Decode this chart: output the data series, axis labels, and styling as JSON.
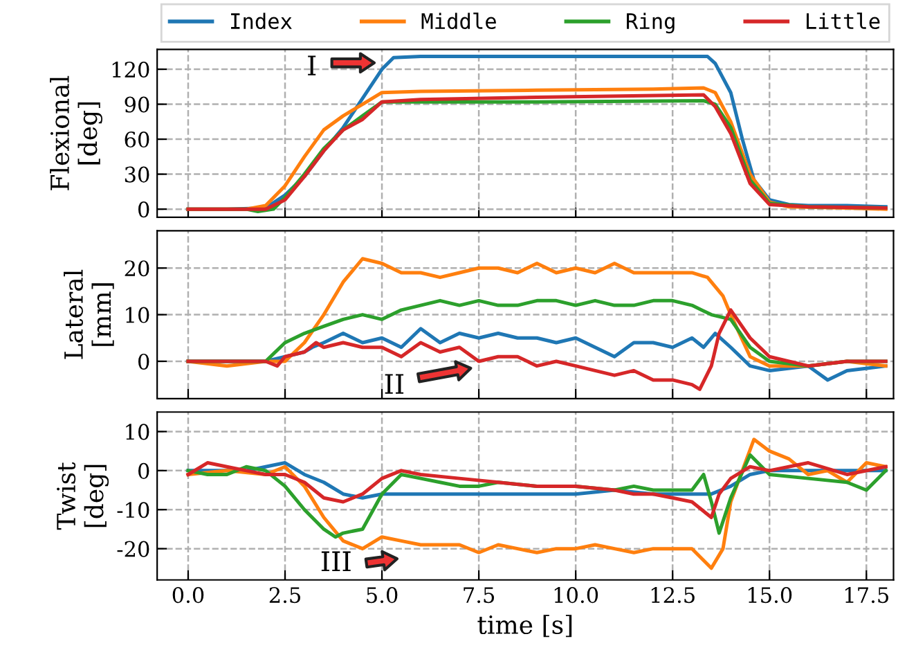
{
  "chart_data": [
    {
      "type": "line",
      "ylabel": "Flexional\n[deg]",
      "xlim": [
        -0.8,
        18.2
      ],
      "ylim": [
        -7,
        137
      ],
      "xticks": [
        0.0,
        2.5,
        5.0,
        7.5,
        10.0,
        12.5,
        15.0,
        17.5
      ],
      "yticks": [
        0,
        30,
        60,
        90,
        120
      ],
      "tick_labels": "y",
      "grid": true,
      "legend": "top",
      "annotations": [
        "I"
      ],
      "series": [
        {
          "name": "Index",
          "color": "#1f77b4",
          "x": [
            0,
            1,
            2,
            2.5,
            3,
            3.5,
            4,
            4.5,
            5,
            5.3,
            6,
            8,
            10,
            12,
            13.4,
            13.6,
            14,
            14.3,
            14.6,
            15,
            15.5,
            16,
            17,
            18
          ],
          "values": [
            0,
            0,
            1,
            12,
            28,
            50,
            70,
            95,
            120,
            130,
            131,
            131,
            131,
            131,
            131,
            125,
            100,
            60,
            25,
            8,
            4,
            3,
            3,
            2
          ]
        },
        {
          "name": "Middle",
          "color": "#ff7f0e",
          "x": [
            0,
            1.5,
            2,
            2.5,
            3,
            3.5,
            4,
            4.5,
            5,
            6,
            9,
            12,
            13.3,
            13.6,
            14,
            14.5,
            15,
            15.5,
            17,
            18
          ],
          "values": [
            0,
            0,
            3,
            20,
            45,
            68,
            80,
            90,
            100,
            101,
            102,
            103,
            104,
            100,
            75,
            30,
            6,
            2,
            1,
            0
          ]
        },
        {
          "name": "Ring",
          "color": "#2ca02c",
          "x": [
            0,
            1.5,
            1.8,
            2.2,
            2.5,
            3,
            3.5,
            4,
            4.5,
            5,
            6,
            9,
            13.3,
            13.6,
            14,
            14.5,
            15,
            16,
            18
          ],
          "values": [
            0,
            0,
            -2,
            0,
            10,
            30,
            52,
            68,
            80,
            92,
            92,
            92,
            93,
            90,
            70,
            25,
            5,
            2,
            1
          ]
        },
        {
          "name": "Little",
          "color": "#d62728",
          "x": [
            0,
            2,
            2.5,
            3,
            3.5,
            4,
            4.5,
            5,
            6,
            9,
            13.3,
            13.6,
            14,
            14.5,
            15,
            16,
            18
          ],
          "values": [
            0,
            0,
            8,
            28,
            50,
            68,
            77,
            92,
            94,
            96,
            98,
            88,
            65,
            22,
            4,
            2,
            1
          ]
        }
      ]
    },
    {
      "type": "line",
      "ylabel": "Lateral\n[mm]",
      "xlim": [
        -0.8,
        18.2
      ],
      "ylim": [
        -8,
        28
      ],
      "xticks": [
        0.0,
        2.5,
        5.0,
        7.5,
        10.0,
        12.5,
        15.0,
        17.5
      ],
      "yticks": [
        0,
        10,
        20
      ],
      "tick_labels": "y",
      "grid": true,
      "annotations": [
        "II"
      ],
      "series": [
        {
          "color": "#1f77b4",
          "x": [
            0,
            1,
            2,
            2.5,
            3,
            3.2,
            3.5,
            4,
            4.5,
            5,
            5.5,
            6,
            6.5,
            7,
            7.5,
            8,
            8.5,
            9,
            9.5,
            10,
            10.5,
            11,
            11.5,
            12,
            12.5,
            13,
            13.3,
            13.6,
            14,
            14.5,
            15,
            16,
            16.5,
            17,
            18
          ],
          "values": [
            0,
            0,
            0,
            1,
            2,
            3,
            4,
            6,
            4,
            5,
            3,
            7,
            4,
            6,
            5,
            6,
            5,
            5,
            4,
            5,
            3,
            1,
            4,
            4,
            3,
            5,
            3,
            6,
            3,
            -1,
            -2,
            -1,
            -4,
            -2,
            -1
          ]
        },
        {
          "color": "#ff7f0e",
          "x": [
            0,
            1,
            2,
            2.5,
            3,
            3.5,
            4,
            4.5,
            5,
            5.5,
            6,
            6.5,
            7,
            7.5,
            8,
            8.5,
            9,
            9.5,
            10,
            10.5,
            11,
            11.5,
            12,
            12.5,
            13,
            13.4,
            13.8,
            14,
            14.5,
            15,
            16,
            17,
            18
          ],
          "values": [
            0,
            -1,
            0,
            0,
            4,
            10,
            17,
            22,
            21,
            19,
            19,
            18,
            19,
            20,
            20,
            19,
            21,
            19,
            20,
            19,
            21,
            19,
            19,
            19,
            19,
            18,
            14,
            10,
            1,
            -1,
            -1,
            0,
            -1
          ]
        },
        {
          "color": "#2ca02c",
          "x": [
            0,
            1,
            2,
            2.5,
            3,
            3.5,
            4,
            4.5,
            5,
            5.5,
            6,
            6.5,
            7,
            7.5,
            8,
            8.5,
            9,
            9.5,
            10,
            10.5,
            11,
            11.5,
            12,
            12.5,
            13,
            13.5,
            14,
            14.5,
            15,
            16,
            17,
            18
          ],
          "values": [
            0,
            0,
            0,
            4,
            6,
            7.5,
            9,
            10,
            9,
            11,
            12,
            13,
            12,
            13,
            12,
            12,
            13,
            13,
            12,
            13,
            12,
            12,
            13,
            13,
            12,
            10,
            9,
            3,
            0,
            -1,
            0,
            0
          ]
        },
        {
          "color": "#d62728",
          "x": [
            0,
            1,
            2,
            2.3,
            2.5,
            3,
            3.3,
            3.5,
            4,
            4.5,
            5,
            5.5,
            6,
            6.5,
            7,
            7.5,
            8,
            8.5,
            9,
            9.5,
            10,
            10.5,
            11,
            11.5,
            12,
            12.5,
            13,
            13.2,
            13.5,
            13.7,
            14,
            14.5,
            15,
            16,
            17,
            18
          ],
          "values": [
            0,
            0,
            0,
            -1,
            1,
            2,
            4,
            3,
            4,
            3,
            3,
            1,
            4,
            2,
            3,
            0,
            1,
            1,
            -1,
            0,
            -1,
            -2,
            -3,
            -2,
            -4,
            -4,
            -5,
            -6,
            -1,
            6,
            11,
            5,
            1,
            -1,
            0,
            0
          ]
        }
      ]
    },
    {
      "type": "line",
      "ylabel": "Twist\n[deg]",
      "xlabel": "time [s]",
      "xlim": [
        -0.8,
        18.2
      ],
      "ylim": [
        -28,
        15
      ],
      "xticks": [
        {
          "value": 0,
          "label": "0.0"
        },
        2.5,
        {
          "value": 5,
          "label": "5.0"
        },
        7.5,
        {
          "value": 10,
          "label": "10.0"
        },
        12.5,
        {
          "value": 15,
          "label": "15.0"
        },
        17.5
      ],
      "yticks": [
        -20,
        -10,
        0,
        10
      ],
      "grid": true,
      "annotations": [
        "III"
      ],
      "series": [
        {
          "color": "#1f77b4",
          "x": [
            0,
            1,
            1.5,
            2,
            2.5,
            3,
            3.5,
            4,
            4.5,
            5,
            6,
            7,
            8,
            9,
            10,
            11,
            12,
            13,
            13.5,
            14,
            14.5,
            15,
            16,
            17,
            18
          ],
          "values": [
            0,
            0,
            0,
            1,
            2,
            -1,
            -3,
            -6,
            -7,
            -6,
            -6,
            -6,
            -6,
            -6,
            -6,
            -5,
            -6,
            -6,
            -6,
            -4,
            -1,
            0,
            0,
            0,
            0
          ]
        },
        {
          "color": "#ff7f0e",
          "x": [
            0,
            1,
            2,
            2.5,
            3,
            3.5,
            4,
            4.5,
            5,
            5.5,
            6,
            6.5,
            7,
            7.5,
            8,
            8.5,
            9,
            9.5,
            10,
            10.5,
            11,
            11.5,
            12,
            12.5,
            13,
            13.5,
            13.8,
            14,
            14.3,
            14.6,
            15,
            15.5,
            16,
            16.5,
            17,
            17.5,
            18
          ],
          "values": [
            -1,
            0,
            -1,
            1,
            -4,
            -12,
            -18,
            -20,
            -17,
            -18,
            -19,
            -19,
            -19,
            -21,
            -19,
            -20,
            -21,
            -20,
            -20,
            -19,
            -20,
            -21,
            -20,
            -20,
            -20,
            -25,
            -20,
            -8,
            0,
            8,
            5,
            3,
            -1,
            0,
            -3,
            2,
            1
          ]
        },
        {
          "color": "#2ca02c",
          "x": [
            0,
            0.5,
            1,
            1.5,
            2,
            2.5,
            3,
            3.5,
            3.8,
            4,
            4.5,
            5,
            5.5,
            6,
            6.5,
            7,
            7.5,
            8,
            9,
            10,
            11,
            11.5,
            12,
            13,
            13.3,
            13.5,
            13.7,
            14,
            14.5,
            15,
            16,
            17,
            17.5,
            18
          ],
          "values": [
            0,
            -1,
            -1,
            1,
            0,
            -4,
            -10,
            -15,
            -17,
            -16,
            -15,
            -6,
            -1,
            -2,
            -3,
            -4,
            -4,
            -3,
            -4,
            -4,
            -5,
            -4,
            -5,
            -5,
            -1,
            -8,
            -16,
            -7,
            4,
            -1,
            -2,
            -3,
            -5,
            0
          ]
        },
        {
          "color": "#d62728",
          "x": [
            0,
            0.5,
            1,
            1.5,
            2,
            2.5,
            3,
            3.5,
            4,
            4.5,
            5,
            5.5,
            6,
            7,
            8,
            9,
            10,
            11,
            11.5,
            12,
            12.5,
            13,
            13.5,
            13.7,
            14,
            14.5,
            15,
            16,
            17,
            18
          ],
          "values": [
            -1,
            2,
            1,
            0,
            -1,
            -1,
            -3,
            -7,
            -8,
            -6,
            -2,
            0,
            -1,
            -2,
            -3,
            -4,
            -4,
            -5,
            -6,
            -6,
            -7,
            -8,
            -12,
            -6,
            -2,
            1,
            0,
            2,
            -1,
            1
          ]
        }
      ]
    }
  ]
}
